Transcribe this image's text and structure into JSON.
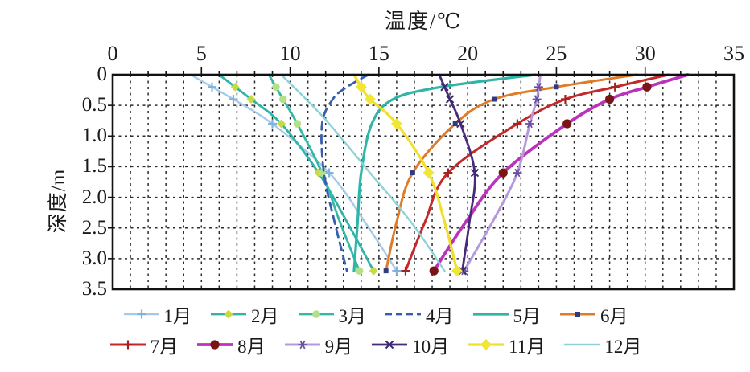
{
  "chart_data": {
    "type": "line",
    "title": "温度/℃",
    "xlabel": "温度/℃",
    "ylabel": "深度/m",
    "grid": "dashed",
    "legend_position": "bottom",
    "x_axis": {
      "min": 0,
      "max": 35,
      "ticks": [
        "0",
        "5",
        "10",
        "15",
        "20",
        "25",
        "30",
        "35"
      ],
      "grid_step": 1
    },
    "y_axis": {
      "min": 0,
      "max": 3.5,
      "ticks": [
        "0",
        "0.5",
        "1.0",
        "1.5",
        "2.0",
        "2.5",
        "3.0",
        "3.5"
      ],
      "grid_step": 0.5
    },
    "depths": [
      0,
      0.2,
      0.4,
      0.8,
      1.6,
      2.4,
      3.2
    ],
    "marker_indices": [
      1,
      2,
      3,
      4,
      6
    ],
    "series": [
      {
        "name": "1月",
        "color": "#a6c9e8",
        "marker": "plus",
        "marker_color": "#7fb2dd",
        "dash": "",
        "width": 2.4,
        "values": [
          4.4,
          5.6,
          6.8,
          9.0,
          12.2,
          14.2,
          16.0
        ]
      },
      {
        "name": "2月",
        "color": "#2fb3ab",
        "marker": "diamond",
        "marker_color": "#c9d944",
        "dash": "",
        "width": 2.8,
        "values": [
          6.0,
          6.9,
          7.8,
          9.5,
          11.6,
          13.2,
          14.7
        ]
      },
      {
        "name": "3月",
        "color": "#35b8a5",
        "marker": "circle",
        "marker_color": "#b5e08a",
        "dash": "",
        "width": 2.8,
        "values": [
          8.8,
          9.2,
          9.6,
          10.4,
          11.8,
          12.8,
          13.9
        ]
      },
      {
        "name": "4月",
        "color": "#3a5eae",
        "marker": "none",
        "marker_color": "#3a5eae",
        "dash": "10,7",
        "width": 2.8,
        "values": [
          14.4,
          13.2,
          12.4,
          11.8,
          11.9,
          12.5,
          13.2
        ]
      },
      {
        "name": "5月",
        "color": "#2fb5a8",
        "marker": "none",
        "marker_color": "#2fb5a8",
        "dash": "",
        "width": 3.2,
        "values": [
          23.8,
          18.5,
          15.8,
          14.6,
          14.0,
          13.8,
          13.6
        ]
      },
      {
        "name": "6月",
        "color": "#e07b28",
        "marker": "square",
        "marker_color": "#2e3b7e",
        "dash": "",
        "width": 3.0,
        "values": [
          29.5,
          25.0,
          21.5,
          19.3,
          16.9,
          16.0,
          15.4
        ]
      },
      {
        "name": "7月",
        "color": "#c42828",
        "marker": "plus",
        "marker_color": "#a81f1f",
        "dash": "",
        "width": 3.0,
        "values": [
          31.3,
          28.3,
          25.5,
          22.8,
          18.9,
          17.6,
          16.5
        ]
      },
      {
        "name": "8月",
        "color": "#bb33bb",
        "marker": "dot",
        "marker_color": "#7a1515",
        "dash": "",
        "width": 3.8,
        "values": [
          32.4,
          30.1,
          28.0,
          25.6,
          22.0,
          19.9,
          18.1
        ]
      },
      {
        "name": "9月",
        "color": "#b49add",
        "marker": "asterisk",
        "marker_color": "#6a4fa0",
        "dash": "",
        "width": 3.0,
        "values": [
          24.1,
          24.0,
          23.9,
          23.5,
          22.8,
          21.4,
          19.8
        ]
      },
      {
        "name": "10月",
        "color": "#472a7d",
        "marker": "xmark",
        "marker_color": "#3a2a6e",
        "dash": "",
        "width": 2.8,
        "values": [
          18.4,
          18.7,
          19.0,
          19.6,
          20.4,
          20.1,
          19.7
        ]
      },
      {
        "name": "11月",
        "color": "#f0df2c",
        "marker": "diamond2",
        "marker_color": "#f2e635",
        "dash": "",
        "width": 3.2,
        "values": [
          13.6,
          14.0,
          14.5,
          16.0,
          17.8,
          18.7,
          19.4
        ]
      },
      {
        "name": "12月",
        "color": "#8ed2d8",
        "marker": "none",
        "marker_color": "#8ed2d8",
        "dash": "",
        "width": 2.4,
        "values": [
          9.5,
          10.2,
          10.9,
          12.2,
          14.5,
          16.8,
          18.7
        ]
      }
    ],
    "legend_rows": [
      [
        "1月",
        "2月",
        "3月",
        "4月",
        "5月",
        "6月"
      ],
      [
        "7月",
        "8月",
        "9月",
        "10月",
        "11月",
        "12月"
      ]
    ]
  }
}
